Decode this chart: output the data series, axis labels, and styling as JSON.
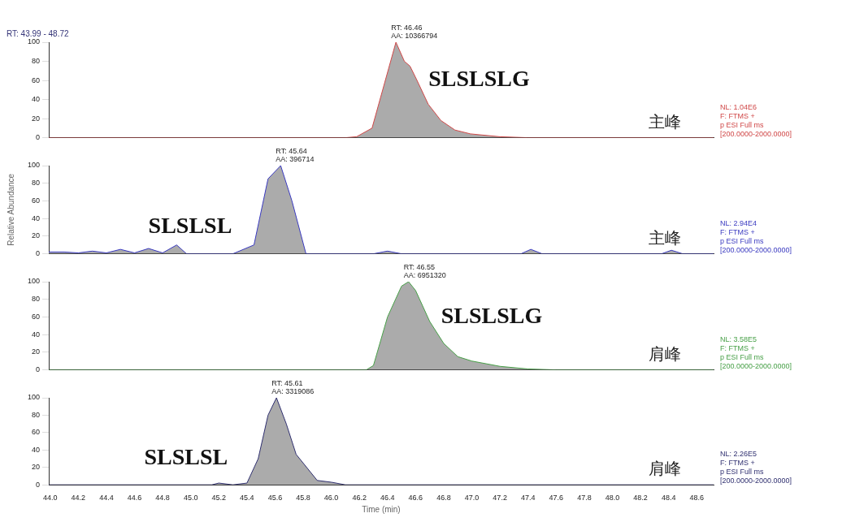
{
  "chart_data": [
    {
      "type": "area",
      "title": "RT: 43.99 - 48.72",
      "xlim": [
        43.99,
        48.72
      ],
      "ylim": [
        0,
        100
      ],
      "yticks": [
        0,
        20,
        40,
        60,
        80,
        100
      ],
      "tick_labels": "y",
      "grid": false,
      "series": [
        {
          "color": "#d04848",
          "x": [
            43.99,
            46.1,
            46.18,
            46.29,
            46.46,
            46.52,
            46.56,
            46.61,
            46.69,
            46.78,
            46.88,
            46.99,
            47.2,
            47.4,
            48.72
          ],
          "values": [
            0,
            0,
            1,
            10,
            100,
            80,
            75,
            60,
            35,
            18,
            8,
            4,
            1,
            0,
            0
          ]
        }
      ],
      "annotations": [
        {
          "text": "RT: 46.46\nAA: 10366794",
          "x": 46.46,
          "y": 100
        },
        "SLSLSLG",
        "主峰",
        "NL: 1.04E6\nF: FTMS +\np ESI Full ms\n[200.0000-2000.0000]"
      ]
    },
    {
      "type": "area",
      "xlim": [
        43.99,
        48.72
      ],
      "ylim": [
        0,
        100
      ],
      "yticks": [
        0,
        20,
        40,
        60,
        80,
        100
      ],
      "tick_labels": "y",
      "grid": false,
      "ylabel": "Relative Abundance",
      "series": [
        {
          "color": "#3a3ac0",
          "x": [
            43.99,
            44.1,
            44.2,
            44.3,
            44.4,
            44.5,
            44.6,
            44.7,
            44.8,
            44.9,
            44.97,
            45.3,
            45.45,
            45.55,
            45.64,
            45.72,
            45.82,
            46.3,
            46.4,
            46.5,
            47.35,
            47.42,
            47.5,
            48.35,
            48.42,
            48.5,
            48.72
          ],
          "values": [
            2,
            2,
            1,
            3,
            1,
            5,
            1,
            6,
            1,
            10,
            0,
            0,
            10,
            85,
            100,
            60,
            0,
            0,
            3,
            0,
            0,
            5,
            0,
            0,
            4,
            0,
            0
          ]
        }
      ],
      "annotations": [
        {
          "text": "RT: 45.64\nAA: 396714",
          "x": 45.64,
          "y": 100
        },
        "SLSLSL",
        "主峰",
        "NL: 2.94E4\nF: FTMS +\np ESI Full ms\n[200.0000-2000.0000]"
      ]
    },
    {
      "type": "area",
      "xlim": [
        43.99,
        48.72
      ],
      "ylim": [
        0,
        100
      ],
      "yticks": [
        0,
        20,
        40,
        60,
        80,
        100
      ],
      "tick_labels": "y",
      "grid": false,
      "series": [
        {
          "color": "#48a048",
          "x": [
            43.99,
            46.25,
            46.3,
            46.4,
            46.5,
            46.55,
            46.6,
            46.7,
            46.8,
            46.9,
            47,
            47.2,
            47.4,
            47.6,
            48.72
          ],
          "values": [
            0,
            0,
            5,
            60,
            95,
            100,
            90,
            55,
            30,
            15,
            10,
            4,
            1,
            0,
            0
          ]
        }
      ],
      "annotations": [
        {
          "text": "RT: 46.55\nAA: 6951320",
          "x": 46.55,
          "y": 100
        },
        "SLSLSLG",
        "肩峰",
        "NL: 3.58E5\nF: FTMS +\np ESI Full ms\n[200.0000-2000.0000]"
      ]
    },
    {
      "type": "area",
      "xlim": [
        43.99,
        48.72
      ],
      "ylim": [
        0,
        100
      ],
      "yticks": [
        0,
        20,
        40,
        60,
        80,
        100
      ],
      "xticks": [
        {
          "value": 44,
          "label": "44.0"
        },
        {
          "value": 44.2,
          "label": "44.2"
        },
        {
          "value": 44.4,
          "label": "44.4"
        },
        {
          "value": 44.6,
          "label": "44.6"
        },
        {
          "value": 44.8,
          "label": "44.8"
        },
        {
          "value": 45,
          "label": "45.0"
        },
        {
          "value": 45.2,
          "label": "45.2"
        },
        {
          "value": 45.4,
          "label": "45.4"
        },
        {
          "value": 45.6,
          "label": "45.6"
        },
        {
          "value": 45.8,
          "label": "45.8"
        },
        {
          "value": 46,
          "label": "46.0"
        },
        {
          "value": 46.2,
          "label": "46.2"
        },
        {
          "value": 46.4,
          "label": "46.4"
        },
        {
          "value": 46.6,
          "label": "46.6"
        },
        {
          "value": 46.8,
          "label": "46.8"
        },
        {
          "value": 47,
          "label": "47.0"
        },
        {
          "value": 47.2,
          "label": "47.2"
        },
        {
          "value": 47.4,
          "label": "47.4"
        },
        {
          "value": 47.6,
          "label": "47.6"
        },
        {
          "value": 47.8,
          "label": "47.8"
        },
        {
          "value": 48,
          "label": "48.0"
        },
        {
          "value": 48.2,
          "label": "48.2"
        },
        {
          "value": 48.4,
          "label": "48.4"
        },
        {
          "value": 48.6,
          "label": "48.6"
        }
      ],
      "grid": false,
      "xlabel": "Time (min)",
      "series": [
        {
          "color": "#303070",
          "x": [
            43.99,
            45.15,
            45.2,
            45.3,
            45.4,
            45.48,
            45.55,
            45.61,
            45.68,
            45.75,
            45.85,
            45.9,
            46,
            46.1,
            48.72
          ],
          "values": [
            0,
            0,
            2,
            0,
            2,
            30,
            80,
            100,
            70,
            35,
            15,
            5,
            3,
            0,
            0
          ]
        }
      ],
      "annotations": [
        {
          "text": "RT: 45.61\nAA: 3319086",
          "x": 45.61,
          "y": 100
        },
        "SLSLSL",
        "肩峰",
        "NL: 2.26E5\nF: FTMS +\np ESI Full ms\n[200.0000-2000.0000]"
      ]
    }
  ]
}
